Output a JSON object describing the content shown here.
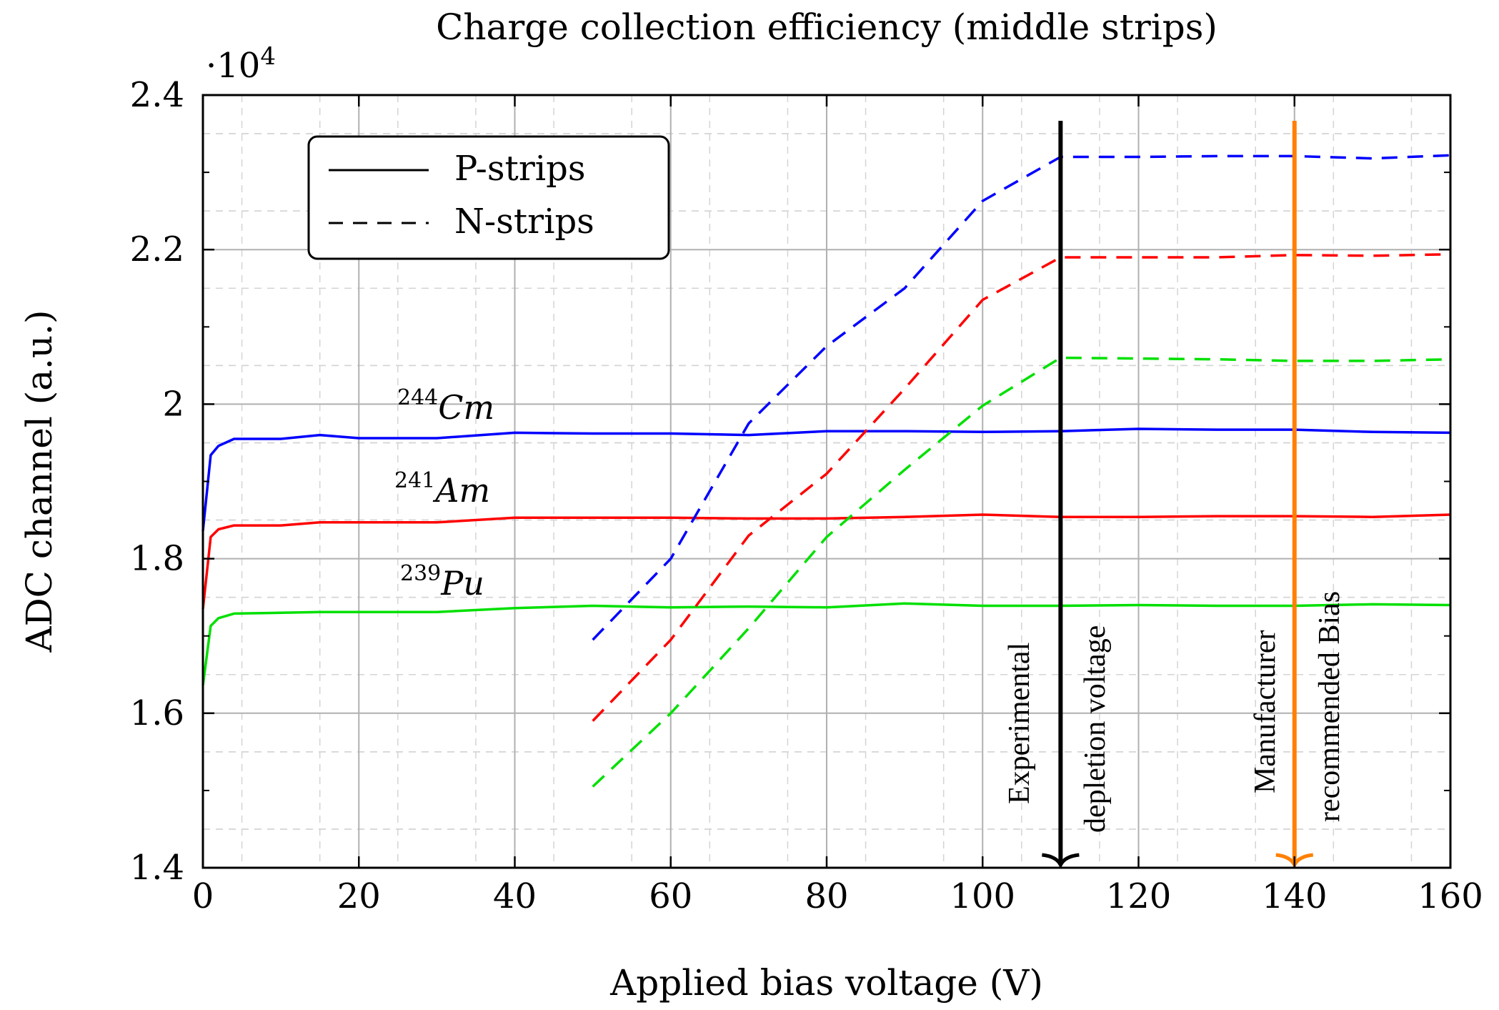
{
  "chart_data": {
    "type": "line",
    "title": "Charge collection efficiency (middle strips)",
    "xlabel": "Applied bias voltage (V)",
    "ylabel": "ADC channel (a.u.)",
    "y_multiplier_label": "·10",
    "y_multiplier_exponent": "4",
    "xlim": [
      0,
      160
    ],
    "ylim": [
      1.4,
      2.4
    ],
    "x_ticks": [
      0,
      20,
      40,
      60,
      80,
      100,
      120,
      140,
      160
    ],
    "x_tick_labels": [
      "0",
      "20",
      "40",
      "60",
      "80",
      "100",
      "120",
      "140",
      "160"
    ],
    "y_ticks": [
      1.4,
      1.6,
      1.8,
      2.0,
      2.2,
      2.4
    ],
    "y_tick_labels": [
      "1.4",
      "1.6",
      "1.8",
      "2",
      "2.2",
      "2.4"
    ],
    "grid": true,
    "legend": {
      "position": "top-left",
      "entries": [
        {
          "label": "P-strips",
          "style": "solid"
        },
        {
          "label": "N-strips",
          "style": "dashed"
        }
      ]
    },
    "series": [
      {
        "name": "244Cm P-strips",
        "isotope_mass": "244",
        "isotope": "Cm",
        "color": "#0000ff",
        "style": "solid",
        "x": [
          0,
          1,
          2,
          4,
          10,
          15,
          20,
          30,
          40,
          50,
          60,
          70,
          80,
          90,
          100,
          110,
          120,
          130,
          140,
          150,
          160
        ],
        "y": [
          1.836,
          1.934,
          1.946,
          1.955,
          1.955,
          1.96,
          1.956,
          1.956,
          1.963,
          1.962,
          1.962,
          1.96,
          1.965,
          1.965,
          1.964,
          1.965,
          1.968,
          1.967,
          1.967,
          1.964,
          1.963
        ]
      },
      {
        "name": "241Am P-strips",
        "isotope_mass": "241",
        "isotope": "Am",
        "color": "#ff0000",
        "style": "solid",
        "x": [
          0,
          1,
          2,
          4,
          10,
          15,
          20,
          30,
          40,
          50,
          60,
          70,
          80,
          90,
          100,
          110,
          120,
          130,
          140,
          150,
          160
        ],
        "y": [
          1.735,
          1.828,
          1.838,
          1.843,
          1.843,
          1.847,
          1.847,
          1.847,
          1.853,
          1.853,
          1.853,
          1.852,
          1.852,
          1.854,
          1.857,
          1.854,
          1.854,
          1.855,
          1.855,
          1.854,
          1.857
        ]
      },
      {
        "name": "239Pu P-strips",
        "isotope_mass": "239",
        "isotope": "Pu",
        "color": "#00e000",
        "style": "solid",
        "x": [
          0,
          1,
          2,
          4,
          10,
          15,
          20,
          30,
          40,
          50,
          60,
          70,
          80,
          90,
          100,
          110,
          120,
          130,
          140,
          150,
          160
        ],
        "y": [
          1.636,
          1.713,
          1.723,
          1.729,
          1.73,
          1.731,
          1.731,
          1.731,
          1.736,
          1.739,
          1.737,
          1.738,
          1.737,
          1.742,
          1.739,
          1.739,
          1.74,
          1.739,
          1.739,
          1.741,
          1.74
        ]
      },
      {
        "name": "244Cm N-strips",
        "color": "#0000ff",
        "style": "dashed",
        "x": [
          50,
          60,
          70,
          80,
          90,
          100,
          110,
          120,
          130,
          140,
          150,
          160
        ],
        "y": [
          1.695,
          1.8,
          1.975,
          2.075,
          2.15,
          2.263,
          2.32,
          2.32,
          2.321,
          2.321,
          2.318,
          2.322
        ]
      },
      {
        "name": "241Am N-strips",
        "color": "#ff0000",
        "style": "dashed",
        "x": [
          50,
          60,
          70,
          80,
          90,
          100,
          110,
          120,
          130,
          140,
          150,
          160
        ],
        "y": [
          1.59,
          1.695,
          1.83,
          1.91,
          2.02,
          2.135,
          2.19,
          2.19,
          2.19,
          2.193,
          2.192,
          2.194
        ]
      },
      {
        "name": "239Pu N-strips",
        "color": "#00e000",
        "style": "dashed",
        "x": [
          50,
          60,
          70,
          80,
          90,
          100,
          110,
          120,
          130,
          140,
          150,
          160
        ],
        "y": [
          1.505,
          1.6,
          1.71,
          1.828,
          1.915,
          1.998,
          2.06,
          2.059,
          2.058,
          2.056,
          2.056,
          2.058
        ]
      }
    ],
    "annotations": [
      {
        "lines": [
          "Experimental",
          "depletion voltage"
        ],
        "x": 110,
        "color": "#000000",
        "type": "vertical-arrow"
      },
      {
        "lines": [
          "Manufacturer",
          "recommended Bias"
        ],
        "x": 140,
        "color": "#ff8000",
        "type": "vertical-arrow"
      }
    ]
  }
}
